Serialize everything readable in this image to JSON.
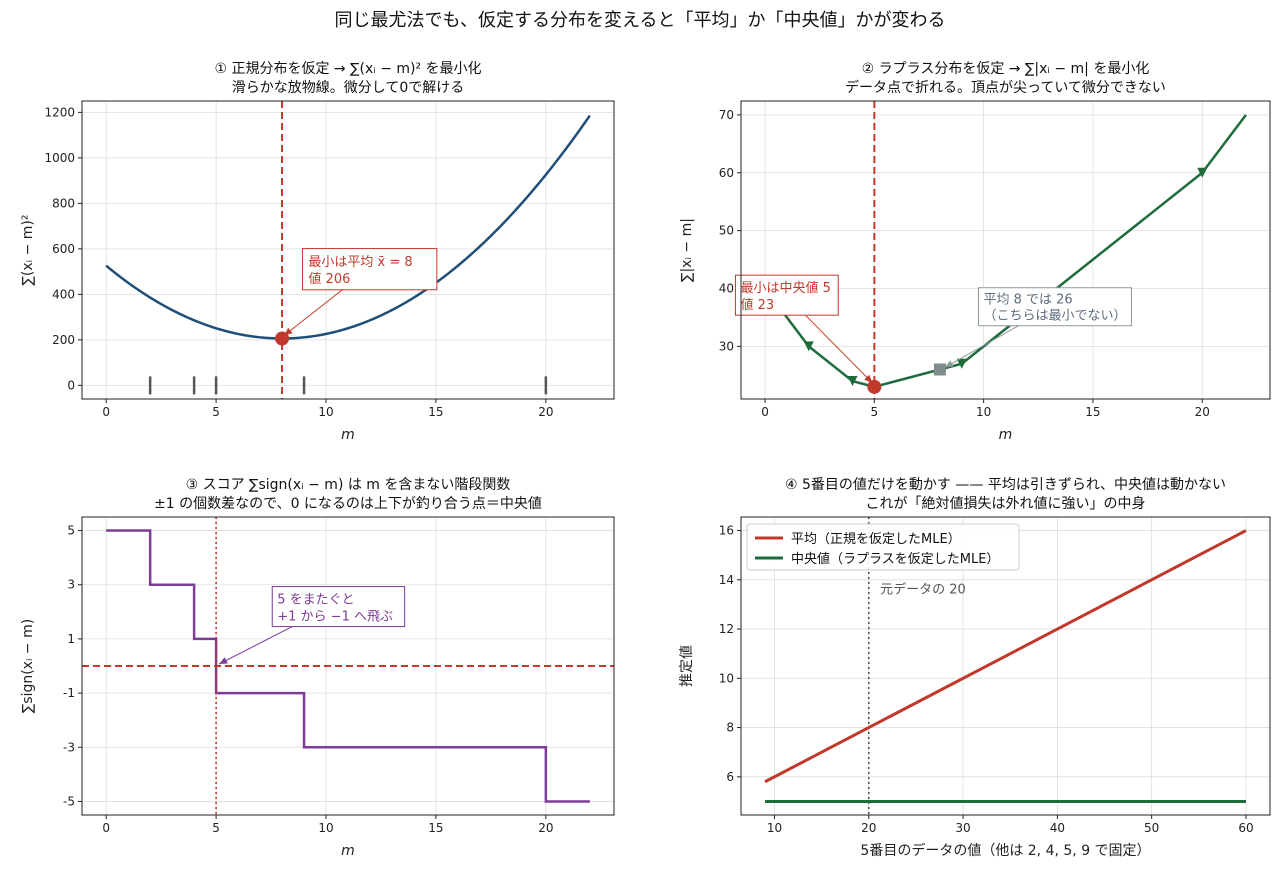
{
  "suptitle": "同じ最尤法でも、仮定する分布を変えると「平均」か「中央値」かが変わる",
  "chart_data": [
    {
      "type": "line",
      "title_line1": "① 正規分布を仮定 → ∑(xᵢ − m)² を最小化",
      "title_line2": "滑らかな放物線。微分して0で解ける",
      "xlabel": "m",
      "ylabel": "∑(xᵢ − m)²",
      "xlim": [
        -1.1,
        23.1
      ],
      "ylim": [
        -60,
        1250
      ],
      "xticks": [
        0,
        5,
        10,
        15,
        20
      ],
      "yticks": [
        0,
        200,
        400,
        600,
        800,
        1000,
        1200
      ],
      "data_points": [
        2,
        4,
        5,
        9,
        20
      ],
      "curve": {
        "x_range": [
          0,
          22
        ],
        "color": "#1f4e79"
      },
      "vline": {
        "x": 8,
        "color": "#c0392b"
      },
      "min_point": {
        "x": 8,
        "y": 206
      },
      "annotation": {
        "line1": "最小は平均 x̄ = 8",
        "line2": "値 206",
        "color": "#c0392b",
        "target": [
          8,
          206
        ],
        "text_at": [
          9.2,
          560
        ]
      }
    },
    {
      "type": "line",
      "title_line1": "② ラプラス分布を仮定 → ∑|xᵢ − m| を最小化",
      "title_line2": "データ点で折れる。頂点が尖っていて微分できない",
      "xlabel": "m",
      "ylabel": "∑|xᵢ − m|",
      "xlim": [
        -1.1,
        23.1
      ],
      "ylim": [
        20.9,
        72.4
      ],
      "xticks": [
        0,
        5,
        10,
        15,
        20
      ],
      "yticks": [
        30,
        40,
        50,
        60,
        70
      ],
      "vertices": [
        [
          0,
          40
        ],
        [
          2,
          30
        ],
        [
          4,
          24
        ],
        [
          5,
          23
        ],
        [
          9,
          27
        ],
        [
          20,
          60
        ],
        [
          22,
          70
        ]
      ],
      "markers_at": [
        2,
        4,
        9,
        20
      ],
      "line_color": "#1e6b3c",
      "vline": {
        "x": 5,
        "color": "#c0392b"
      },
      "min_point": {
        "x": 5,
        "y": 23
      },
      "mean_point": {
        "x": 8,
        "y": 26
      },
      "annotation_min": {
        "line1": "最小は中央値 5",
        "line2": "値 23",
        "color": "#c0392b",
        "target": [
          5,
          23
        ],
        "text_at": [
          -1.4,
          40.4
        ]
      },
      "annotation_mean": {
        "line1": "平均 8 では 26",
        "line2": "（こちらは最小でない）",
        "color": "#5d6d7e",
        "target": [
          8,
          26
        ],
        "text_at": [
          9.9,
          38.4
        ]
      }
    },
    {
      "type": "line",
      "title_line1": "③ スコア ∑sign(xᵢ − m) は m を含まない階段関数",
      "title_line2": "±1 の個数差なので、0 になるのは上下が釣り合う点＝中央値",
      "xlabel": "m",
      "ylabel": "∑sign(xᵢ − m)",
      "xlim": [
        -1.1,
        23.1
      ],
      "ylim": [
        -5.5,
        5.5
      ],
      "xticks": [
        0,
        5,
        10,
        15,
        20
      ],
      "yticks": [
        5,
        3,
        1,
        -1,
        -3,
        -5
      ],
      "step_points": [
        [
          0,
          5
        ],
        [
          2,
          5
        ],
        [
          2,
          3
        ],
        [
          4,
          3
        ],
        [
          4,
          1
        ],
        [
          5,
          1
        ],
        [
          5,
          -1
        ],
        [
          9,
          -1
        ],
        [
          9,
          -3
        ],
        [
          20,
          -3
        ],
        [
          20,
          -5
        ],
        [
          22,
          -5
        ]
      ],
      "line_color": "#7d3c98",
      "hline": {
        "y": 0,
        "color": "#c0392b"
      },
      "vline": {
        "x": 5,
        "color": "#c0392b"
      },
      "annotation": {
        "line1": "5 をまたぐと",
        "line2": "+1 から −1 へ飛ぶ",
        "color": "#7d3c98",
        "target": [
          5,
          0
        ],
        "text_at": [
          7.6,
          2.6
        ]
      }
    },
    {
      "type": "line",
      "title_line1": "④ 5番目の値だけを動かす —— 平均は引きずられ、中央値は動かない",
      "title_line2": "これが「絶対値損失は外れ値に強い」の中身",
      "xlabel": "5番目のデータの値（他は 2, 4, 5, 9 で固定）",
      "ylabel": "推定値",
      "xlim": [
        6.45,
        62.55
      ],
      "ylim": [
        4.45,
        16.55
      ],
      "xticks": [
        10,
        20,
        30,
        40,
        50,
        60
      ],
      "yticks": [
        6,
        8,
        10,
        12,
        14,
        16
      ],
      "series": [
        {
          "name": "平均（正規を仮定したMLE）",
          "x": [
            9,
            60
          ],
          "y": [
            5.8,
            16
          ],
          "color": "#c0392b"
        },
        {
          "name": "中央値（ラプラスを仮定したMLE）",
          "x": [
            9,
            60
          ],
          "y": [
            5,
            5
          ],
          "color": "#1e6b3c"
        }
      ],
      "legend_position": "upper-left",
      "vline": {
        "x": 20,
        "color": "#555555"
      },
      "vline_label": "元データの 20",
      "vline_label_at": [
        21.2,
        13.6
      ]
    }
  ]
}
